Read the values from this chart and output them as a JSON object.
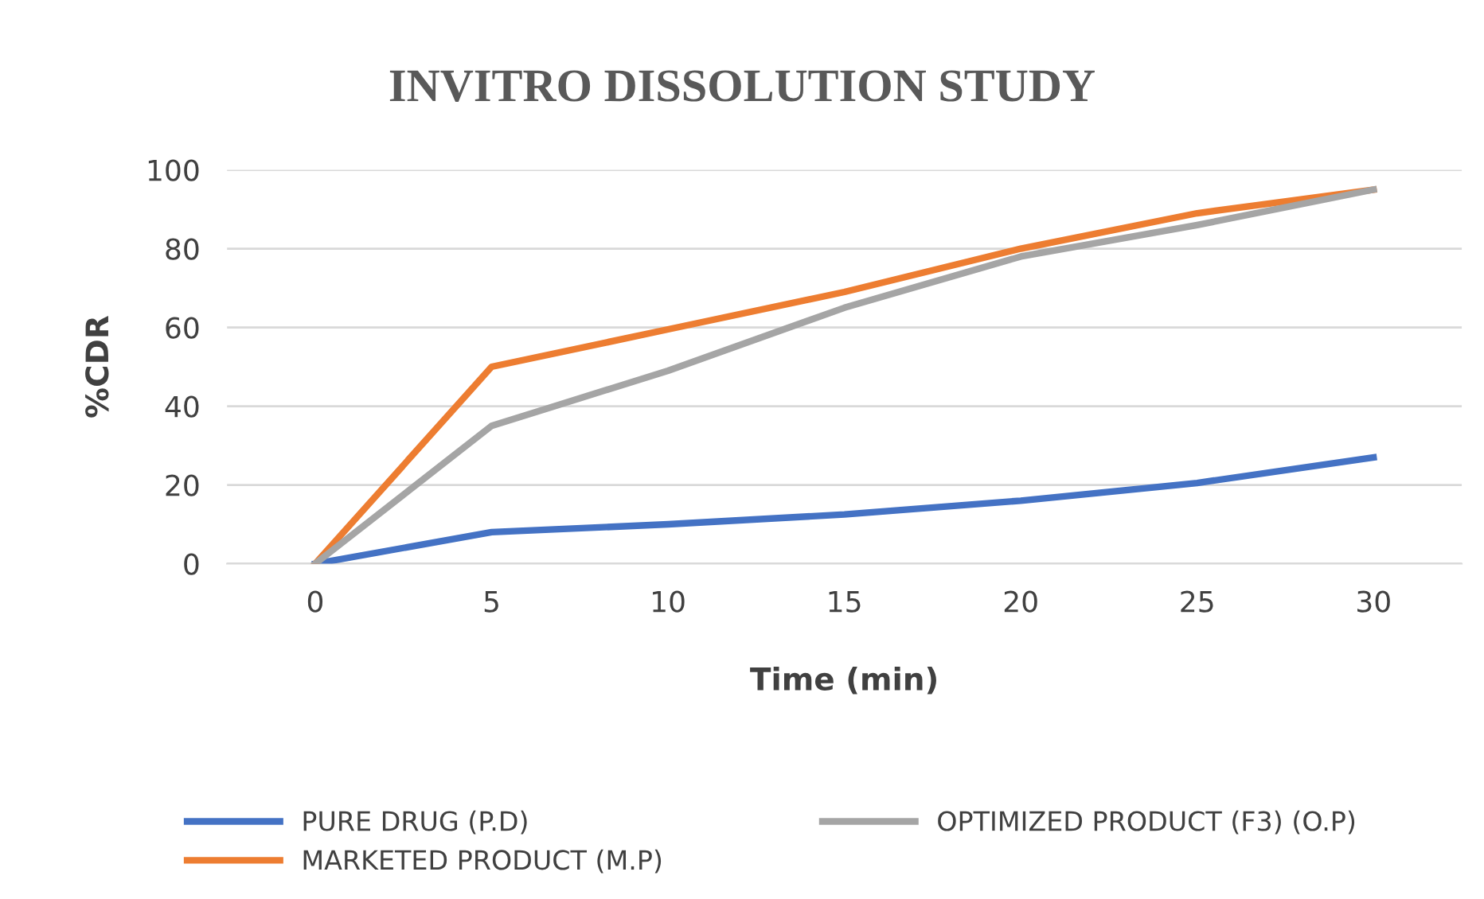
{
  "chart_data": {
    "type": "line",
    "title": "INVITRO DISSOLUTION STUDY",
    "xlabel": "Time (min)",
    "ylabel": "%CDR",
    "categories": [
      "0",
      "5",
      "10",
      "15",
      "20",
      "25",
      "30"
    ],
    "series": [
      {
        "name": "PURE DRUG (P.D)",
        "color": "#4472c4",
        "values": [
          0,
          8,
          10,
          12.5,
          16,
          20.5,
          27
        ]
      },
      {
        "name": "MARKETED PRODUCT (M.P)",
        "color": "#ed7d31",
        "values": [
          0,
          50,
          59.5,
          69,
          80,
          89,
          95
        ]
      },
      {
        "name": "OPTIMIZED PRODUCT (F3) (O.P)",
        "color": "#a5a5a5",
        "values": [
          0,
          35,
          49,
          65,
          78,
          86,
          95
        ]
      }
    ],
    "ylim": [
      0,
      100
    ],
    "yticks": [
      0,
      20,
      40,
      60,
      80,
      100
    ],
    "grid": "y",
    "legend": "bottom",
    "marker": "none",
    "line_style": "solid"
  }
}
